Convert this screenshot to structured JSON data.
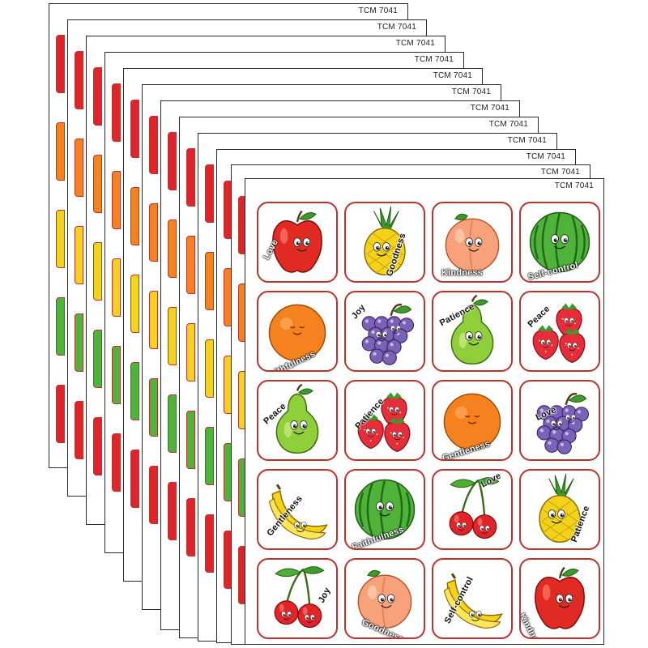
{
  "product_code": "TCM 7041",
  "stickers": [
    {
      "fruit": "apple",
      "label": "Love"
    },
    {
      "fruit": "pineapple",
      "label": "Goodness"
    },
    {
      "fruit": "peach",
      "label": "Kindness"
    },
    {
      "fruit": "watermelon",
      "label": "Self-control"
    },
    {
      "fruit": "orange",
      "label": "Faithfulness"
    },
    {
      "fruit": "grapes",
      "label": "Joy"
    },
    {
      "fruit": "pear",
      "label": "Patience"
    },
    {
      "fruit": "strawberry",
      "label": "Peace"
    },
    {
      "fruit": "pear",
      "label": "Peace"
    },
    {
      "fruit": "strawberry",
      "label": "Patience"
    },
    {
      "fruit": "orange",
      "label": "Gentleness"
    },
    {
      "fruit": "grapes",
      "label": "Love"
    },
    {
      "fruit": "banana",
      "label": "Gentleness"
    },
    {
      "fruit": "watermelon",
      "label": "Faithfulness"
    },
    {
      "fruit": "cherries",
      "label": "Love"
    },
    {
      "fruit": "pineapple",
      "label": "Patience"
    },
    {
      "fruit": "cherries",
      "label": "Joy"
    },
    {
      "fruit": "peach",
      "label": "Goodness"
    },
    {
      "fruit": "banana",
      "label": "Self-control"
    },
    {
      "fruit": "apple",
      "label": "Kindness"
    }
  ],
  "colors": {
    "sticker_border": "#b9342c",
    "sheet_border": "#2a2a2a"
  }
}
